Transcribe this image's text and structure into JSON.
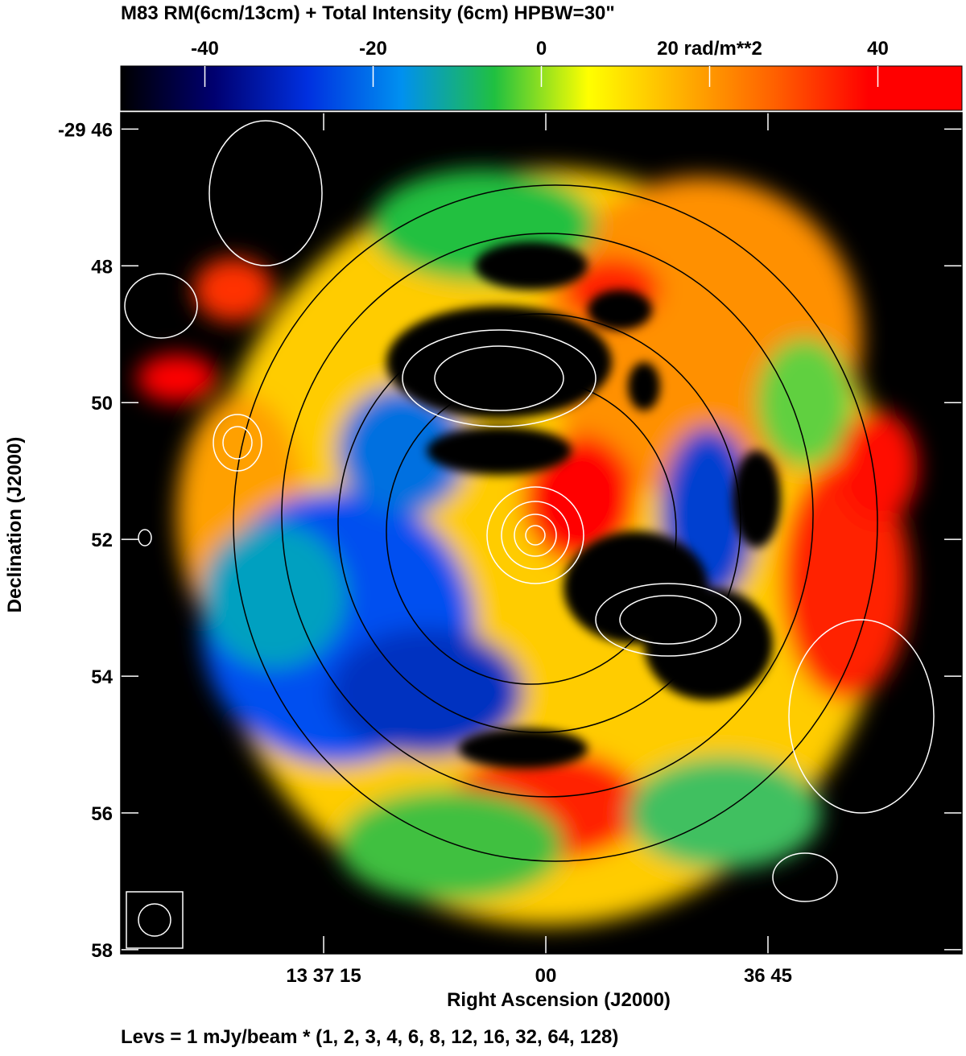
{
  "chart_data": {
    "type": "image",
    "title": "M83   RM(6cm/13cm) + Total Intensity (6cm)   HPBW=30\"",
    "colorbar": {
      "lim": [
        -50,
        50
      ],
      "ticks": [
        -40,
        -20,
        0,
        {
          "value": 20,
          "label": "20 rad/m**2"
        },
        40
      ],
      "colors": [
        "#000000",
        "#000070",
        "#0030e0",
        "#0090f0",
        "#20c040",
        "#ffff00",
        "#ffb000",
        "#ff6000",
        "#ff0000",
        "#ff0000"
      ]
    },
    "x_label": "Right Ascension (J2000)",
    "y_label": "Declination (J2000)",
    "xlim": [
      2248.7,
      2191.9
    ],
    "xticks": [
      {
        "value": 2235,
        "label": "13 37 15"
      },
      {
        "value": 2220,
        "label": "00"
      },
      {
        "value": 2205,
        "label": "36 45"
      }
    ],
    "ylim": [
      45.76,
      58.06
    ],
    "yticks": [
      {
        "value": 46,
        "label": "-29 46"
      },
      48,
      50,
      52,
      54,
      56,
      58
    ],
    "footnote": "Levs = 1 mJy/beam * (1, 2, 3, 4, 6, 8, 12, 16, 32, 64, 128)"
  }
}
